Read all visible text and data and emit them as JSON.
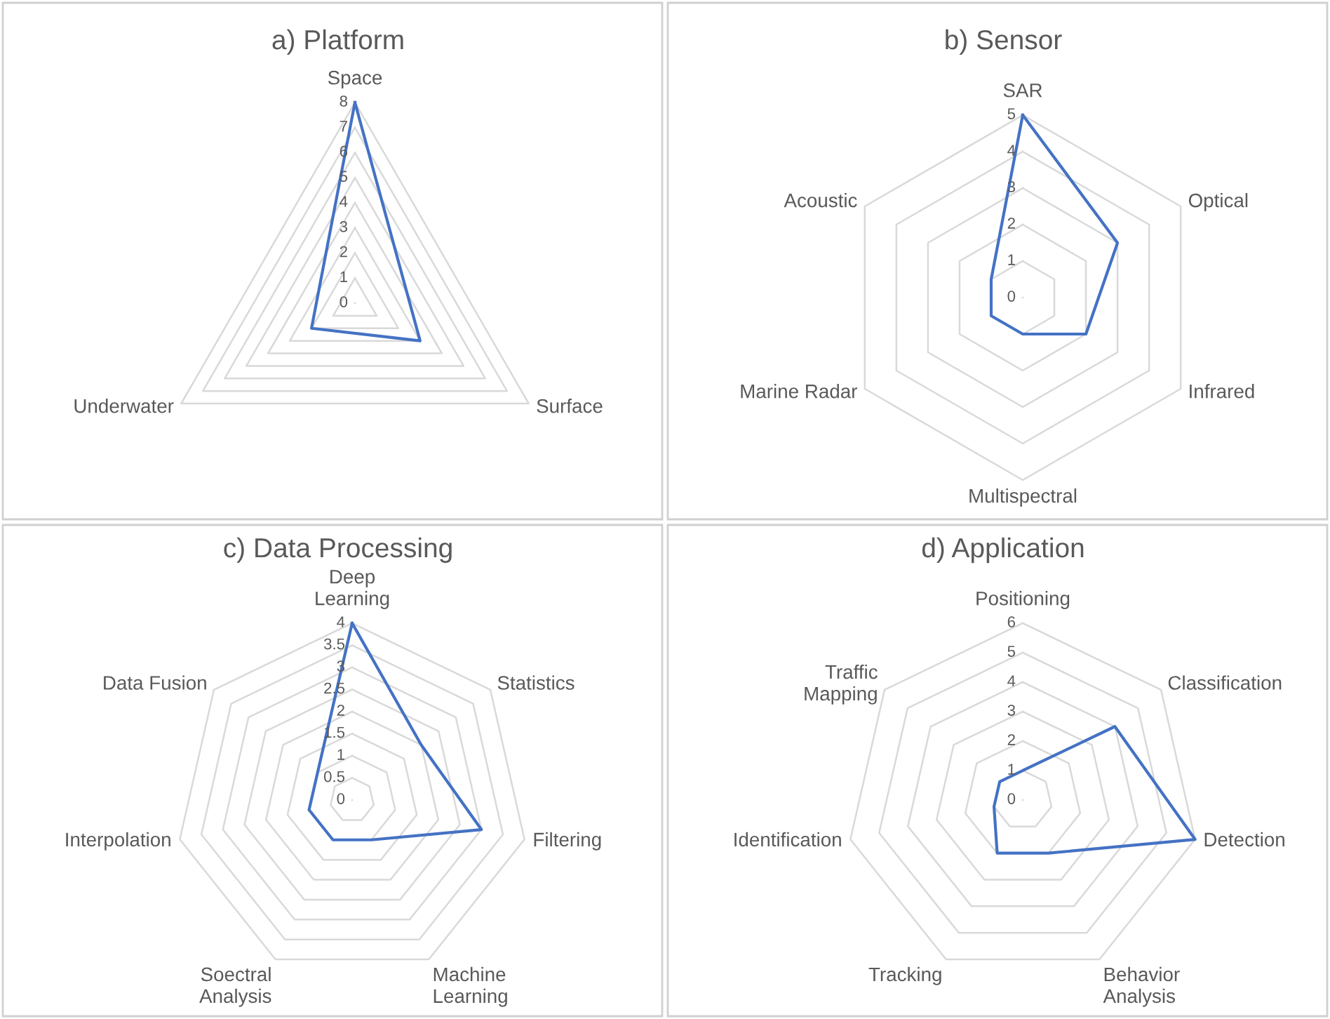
{
  "chart_data": [
    {
      "type": "radar",
      "title": "a) Platform",
      "categories": [
        "Space",
        "Surface",
        "Underwater"
      ],
      "ylim": [
        0,
        8
      ],
      "yticks": [
        0,
        1,
        2,
        3,
        4,
        5,
        6,
        7,
        8
      ],
      "grid": true,
      "series": [
        {
          "color": "#4472c4",
          "values": [
            8,
            3,
            2
          ]
        }
      ]
    },
    {
      "type": "radar",
      "title": "b) Sensor",
      "categories": [
        "SAR",
        "Optical",
        "Infrared",
        "Multispectral",
        "Marine Radar",
        "Acoustic"
      ],
      "ylim": [
        0,
        5
      ],
      "yticks": [
        0,
        1,
        2,
        3,
        4,
        5
      ],
      "grid": true,
      "series": [
        {
          "color": "#4472c4",
          "values": [
            5,
            3,
            2,
            1,
            1,
            1
          ]
        }
      ]
    },
    {
      "type": "radar",
      "title": "c) Data Processing",
      "categories": [
        "Deep Learning",
        "Statistics",
        "Filtering",
        "Machine Learning",
        "Soectral Analysis",
        "Interpolation",
        "Data Fusion"
      ],
      "ylim": [
        0,
        4
      ],
      "yticks": [
        0,
        0.5,
        1,
        1.5,
        2,
        2.5,
        3,
        3.5,
        4
      ],
      "grid": true,
      "series": [
        {
          "color": "#4472c4",
          "values": [
            4,
            2,
            3,
            1,
            1,
            1,
            1
          ]
        }
      ]
    },
    {
      "type": "radar",
      "title": "d) Application",
      "categories": [
        "Positioning",
        "Classification",
        "Detection",
        "Behavior Analysis",
        "Tracking",
        "Identification",
        "Traffic Mapping"
      ],
      "ylim": [
        0,
        6
      ],
      "yticks": [
        0,
        1,
        2,
        3,
        4,
        5,
        6
      ],
      "grid": true,
      "series": [
        {
          "color": "#4472c4",
          "values": [
            1,
            4,
            6,
            2,
            2,
            1,
            1
          ]
        }
      ]
    }
  ]
}
